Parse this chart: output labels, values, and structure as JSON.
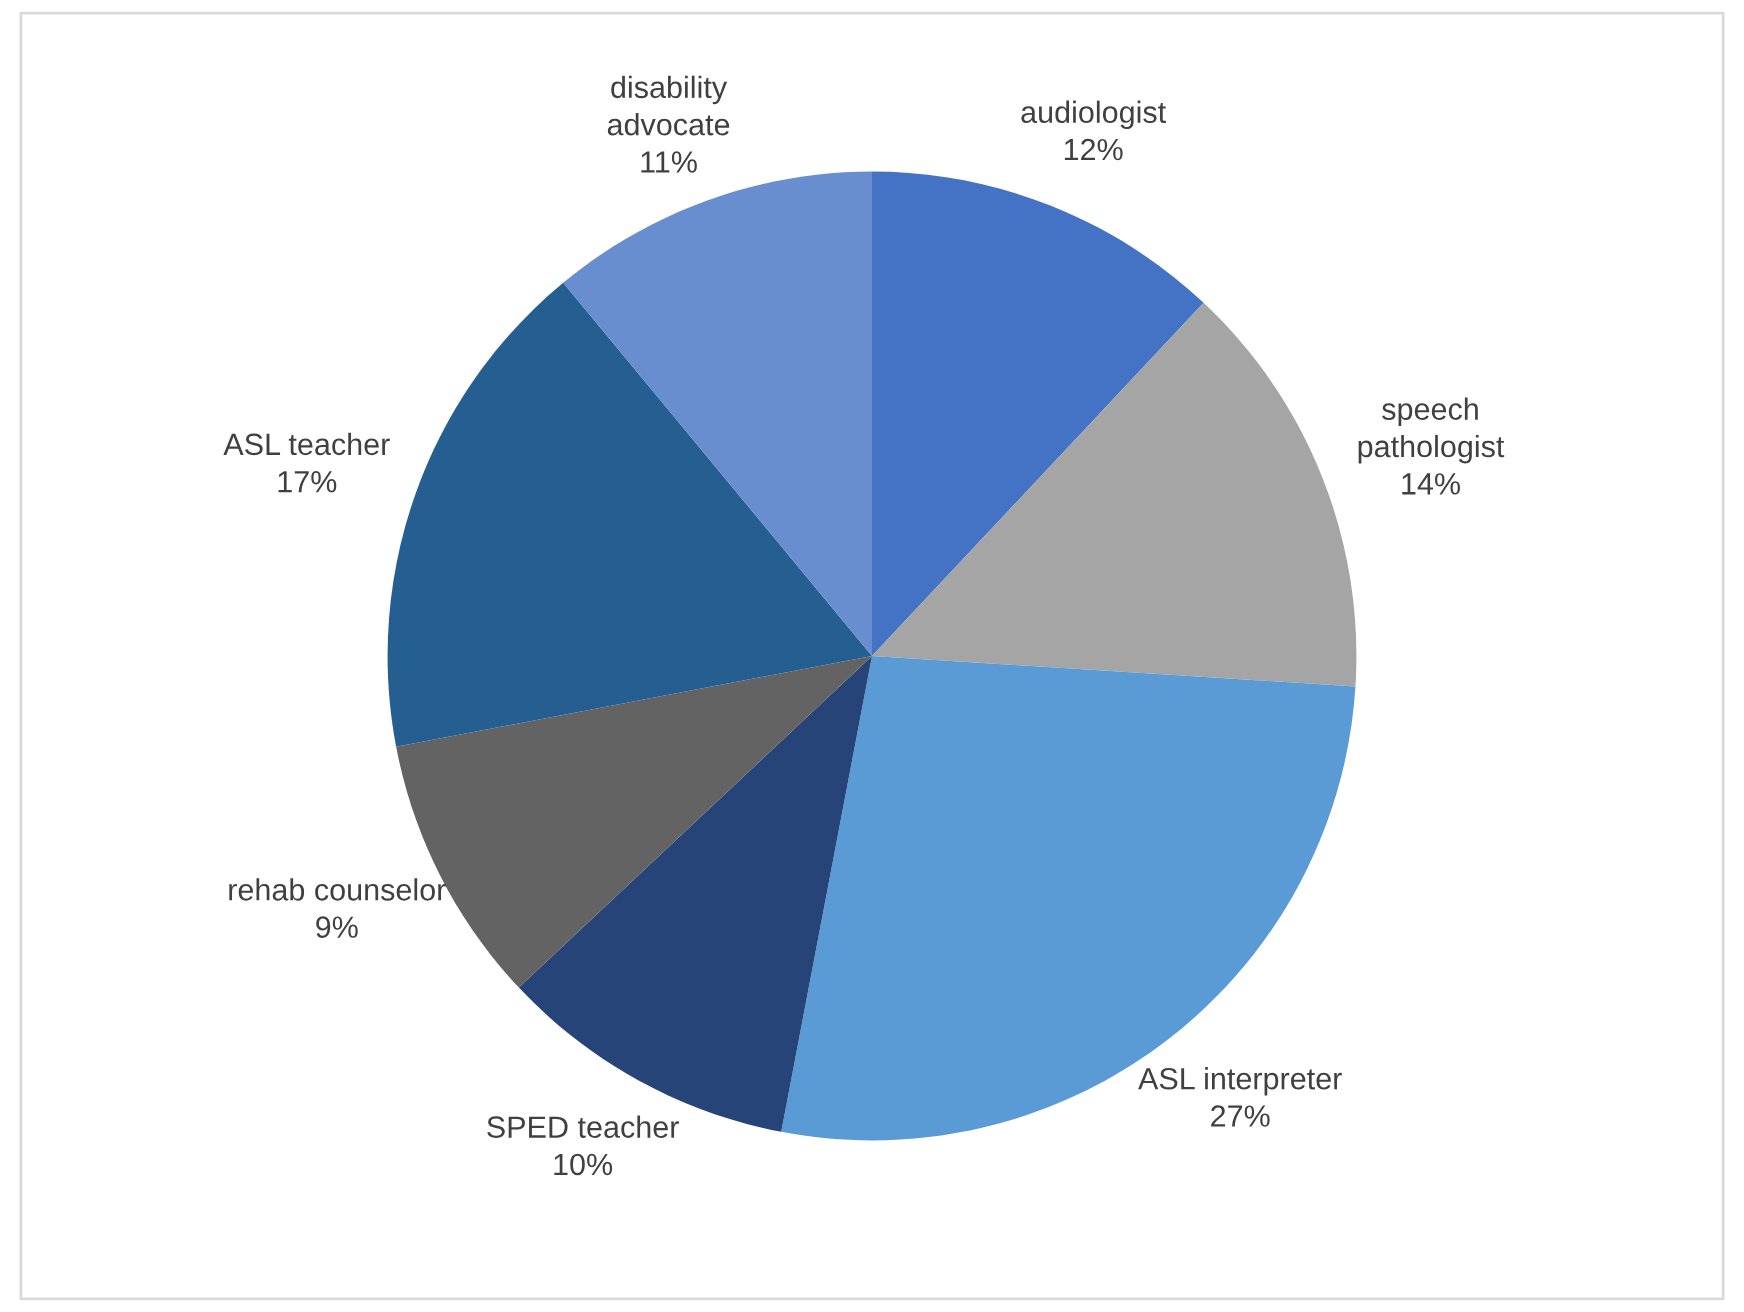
{
  "chart_data": {
    "type": "pie",
    "categories": [
      "audiologist",
      "speech\npathologist",
      "ASL interpreter",
      "SPED teacher",
      "rehab counselor",
      "ASL teacher",
      "disability\nadvocate"
    ],
    "values": [
      12,
      14,
      27,
      10,
      9,
      17,
      11
    ],
    "colors": [
      "#4472c4",
      "#a5a5a5",
      "#5b9bd5",
      "#264478",
      "#636363",
      "#255e91",
      "#698ed0"
    ],
    "value_labels": [
      "12%",
      "14%",
      "27%",
      "10%",
      "9%",
      "17%",
      "11%"
    ],
    "legend": false
  }
}
